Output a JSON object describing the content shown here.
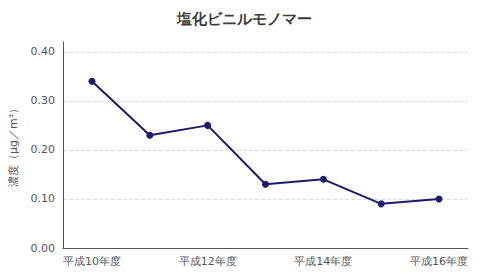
{
  "chart_data": {
    "type": "line",
    "title": "塩化ビニルモノマー",
    "categories": [
      "平成10年度",
      null,
      "平成12年度",
      null,
      "平成14年度",
      null,
      "平成16年度"
    ],
    "values": [
      0.34,
      0.23,
      0.25,
      0.13,
      0.14,
      0.09,
      0.1
    ],
    "ylabel": "濃度（μg／m³）",
    "color": "#1a1a6e",
    "marker": "circle",
    "ylim": [
      0.0,
      0.42
    ],
    "yticks": [
      {
        "value": 0.0,
        "label": "0.00"
      },
      {
        "value": 0.1,
        "label": "0.10"
      },
      {
        "value": 0.2,
        "label": "0.20"
      },
      {
        "value": 0.3,
        "label": "0.30"
      },
      {
        "value": 0.4,
        "label": "0.40"
      }
    ],
    "grid": true
  }
}
